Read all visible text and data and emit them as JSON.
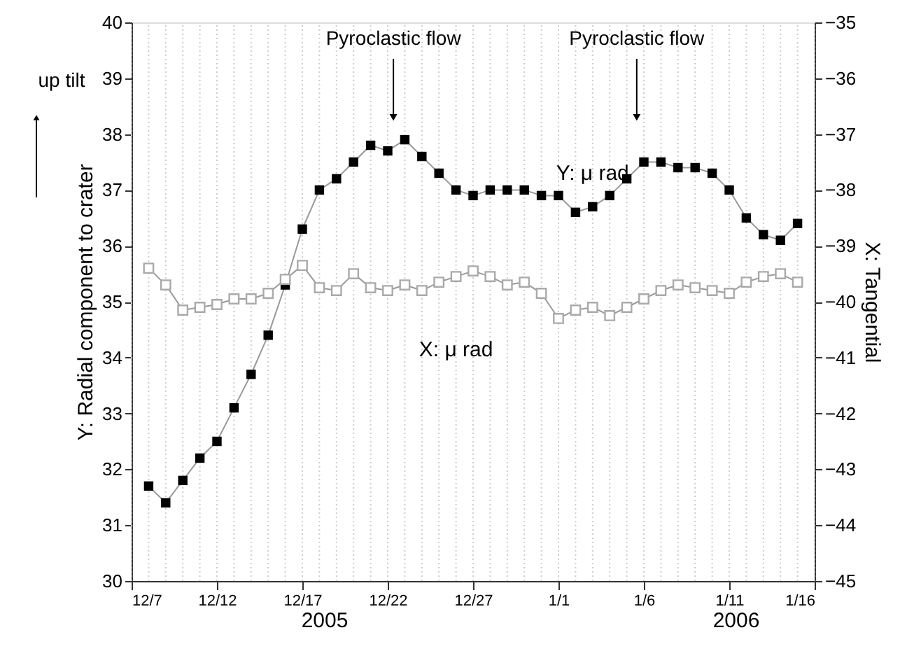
{
  "chart_data": {
    "type": "line",
    "x": [
      "2005-12-08",
      "2005-12-09",
      "2005-12-10",
      "2005-12-11",
      "2005-12-12",
      "2005-12-13",
      "2005-12-14",
      "2005-12-15",
      "2005-12-16",
      "2005-12-17",
      "2005-12-18",
      "2005-12-19",
      "2005-12-20",
      "2005-12-21",
      "2005-12-22",
      "2005-12-23",
      "2005-12-24",
      "2005-12-25",
      "2005-12-26",
      "2005-12-27",
      "2005-12-28",
      "2005-12-29",
      "2005-12-30",
      "2005-12-31",
      "2006-01-01",
      "2006-01-02",
      "2006-01-03",
      "2006-01-04",
      "2006-01-05",
      "2006-01-06",
      "2006-01-07",
      "2006-01-08",
      "2006-01-09",
      "2006-01-10",
      "2006-01-11",
      "2006-01-12",
      "2006-01-13",
      "2006-01-14",
      "2006-01-15"
    ],
    "series": [
      {
        "name": "Y: μ rad",
        "color": "#000000",
        "values": [
          31.7,
          31.4,
          31.8,
          32.2,
          32.5,
          33.1,
          33.7,
          34.4,
          35.3,
          36.3,
          37.0,
          37.2,
          37.5,
          37.8,
          37.7,
          37.9,
          37.6,
          37.3,
          37.0,
          36.9,
          37.0,
          37.0,
          37.0,
          36.9,
          36.9,
          36.6,
          36.7,
          36.9,
          37.2,
          37.5,
          37.5,
          37.4,
          37.4,
          37.3,
          37.0,
          36.5,
          36.2,
          36.1,
          36.4
        ]
      },
      {
        "name": "X: μ rad",
        "color": "#aaaaaa",
        "axis": "y2",
        "values": [
          -39.4,
          -39.7,
          -40.15,
          -40.1,
          -40.05,
          -39.95,
          -39.95,
          -39.85,
          -39.6,
          -39.35,
          -39.75,
          -39.8,
          -39.5,
          -39.75,
          -39.8,
          -39.7,
          -39.8,
          -39.65,
          -39.55,
          -39.45,
          -39.55,
          -39.7,
          -39.65,
          -39.85,
          -40.3,
          -40.15,
          -40.1,
          -40.25,
          -40.1,
          -39.95,
          -39.8,
          -39.7,
          -39.75,
          -39.8,
          -39.85,
          -39.65,
          -39.55,
          -39.5,
          -39.65
        ]
      }
    ],
    "xlim": [
      "2005-12-07",
      "2006-01-16"
    ],
    "xticks": [
      {
        "value": "2005-12-07",
        "label": "12/7"
      },
      {
        "value": "2005-12-12",
        "label": "12/12"
      },
      {
        "value": "2005-12-17",
        "label": "12/17"
      },
      {
        "value": "2005-12-22",
        "label": "12/22"
      },
      {
        "value": "2005-12-27",
        "label": "12/27"
      },
      {
        "value": "2006-01-01",
        "label": "1/1"
      },
      {
        "value": "2006-01-06",
        "label": "1/6"
      },
      {
        "value": "2006-01-11",
        "label": "1/11"
      },
      {
        "value": "2006-01-16",
        "label": "1/16"
      }
    ],
    "ylim": [
      30,
      40
    ],
    "yticks": [
      30,
      31,
      32,
      33,
      34,
      35,
      36,
      37,
      38,
      39,
      40
    ],
    "y2lim": [
      -45,
      -35
    ],
    "y2ticks": [
      -45,
      -44,
      -43,
      -42,
      -41,
      -40,
      -39,
      -38,
      -37,
      -36,
      -35
    ],
    "ylabel": "Y: Radial component to crater",
    "y2label": "X: Tangential",
    "annotations": [
      {
        "text": "Pyroclastic flow",
        "x": "2005-12-22T08:00",
        "y": 38.3
      },
      {
        "text": "Pyroclastic flow",
        "x": "2006-01-05T14:00",
        "y": 38.3
      },
      "up tilt",
      "2005",
      "2006"
    ],
    "grid": "x",
    "marker": "square",
    "line_style": "solid"
  }
}
